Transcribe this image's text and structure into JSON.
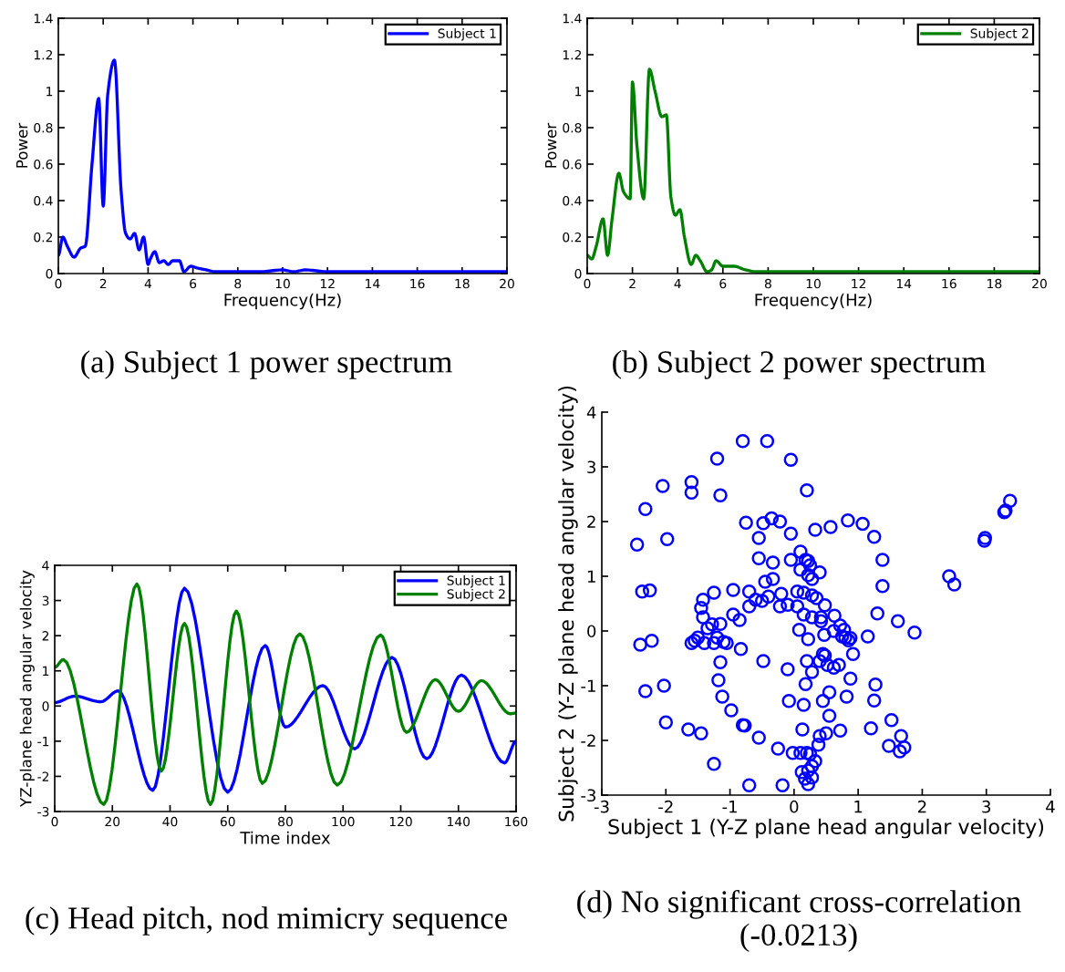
{
  "chart_data": [
    {
      "type": "line",
      "xlabel": "Frequency(Hz)",
      "ylabel": "Power",
      "annotations": [
        "(a) Subject 1 power spectrum"
      ],
      "xlim": [
        0,
        20
      ],
      "ylim": [
        0,
        1.4
      ],
      "xticks": [
        0,
        2,
        4,
        6,
        8,
        10,
        12,
        14,
        16,
        18,
        20
      ],
      "yticks": [
        0,
        0.2,
        0.4,
        0.6,
        0.8,
        1,
        1.2,
        1.4
      ],
      "grid": false,
      "legend": "top right",
      "marker": "none",
      "line_style": "solid",
      "series": [
        {
          "name": "Subject 1",
          "color": "#0000ff",
          "x": [
            0,
            0.2,
            0.4,
            0.7,
            1.0,
            1.2,
            1.5,
            1.8,
            2.0,
            2.2,
            2.5,
            2.8,
            3.0,
            3.2,
            3.4,
            3.6,
            3.8,
            4.0,
            4.1,
            4.3,
            4.5,
            4.7,
            4.9,
            5.1,
            5.4,
            5.6,
            5.9,
            6.2,
            6.6,
            7,
            8,
            9,
            10,
            10.5,
            11,
            12,
            14,
            16,
            18,
            20
          ],
          "values": [
            0.1,
            0.2,
            0.15,
            0.09,
            0.14,
            0.15,
            0.6,
            0.96,
            0.37,
            0.98,
            1.17,
            0.45,
            0.22,
            0.19,
            0.22,
            0.13,
            0.2,
            0.05,
            0.08,
            0.12,
            0.06,
            0.07,
            0.05,
            0.07,
            0.07,
            0.01,
            0.04,
            0.03,
            0.02,
            0.01,
            0.01,
            0.01,
            0.02,
            0.01,
            0.02,
            0.01,
            0.01,
            0.01,
            0.01,
            0.01
          ]
        }
      ]
    },
    {
      "type": "line",
      "xlabel": "Frequency(Hz)",
      "ylabel": "Power",
      "annotations": [
        "(b) Subject 2 power spectrum"
      ],
      "xlim": [
        0,
        20
      ],
      "ylim": [
        0,
        1.4
      ],
      "xticks": [
        0,
        2,
        4,
        6,
        8,
        10,
        12,
        14,
        16,
        18,
        20
      ],
      "yticks": [
        0,
        0.2,
        0.4,
        0.6,
        0.8,
        1,
        1.2,
        1.4
      ],
      "grid": false,
      "legend": "top right",
      "marker": "none",
      "line_style": "solid",
      "series": [
        {
          "name": "Subject 2",
          "color": "#008000",
          "x": [
            0,
            0.2,
            0.4,
            0.7,
            0.9,
            1.1,
            1.4,
            1.6,
            1.9,
            2.0,
            2.2,
            2.5,
            2.75,
            3.0,
            3.3,
            3.5,
            3.7,
            3.9,
            4.1,
            4.3,
            4.6,
            4.8,
            5.0,
            5.3,
            5.5,
            5.7,
            6.0,
            6.5,
            7,
            7.5,
            8,
            9,
            10,
            11,
            12,
            14,
            16,
            18,
            20
          ],
          "values": [
            0.1,
            0.08,
            0.15,
            0.3,
            0.1,
            0.3,
            0.55,
            0.45,
            0.41,
            1.05,
            0.7,
            0.41,
            1.12,
            1.0,
            0.86,
            0.87,
            0.42,
            0.32,
            0.35,
            0.2,
            0.05,
            0.1,
            0.07,
            0.01,
            0.02,
            0.07,
            0.04,
            0.04,
            0.02,
            0.01,
            0.01,
            0.01,
            0.01,
            0.01,
            0.01,
            0.01,
            0.01,
            0.01,
            0.01
          ]
        }
      ]
    },
    {
      "type": "line",
      "xlabel": "Time index",
      "ylabel": "YZ-plane head angular velocity",
      "annotations": [
        "(c) Head pitch, nod mimicry sequence"
      ],
      "xlim": [
        0,
        160
      ],
      "ylim": [
        -3,
        4
      ],
      "xticks": [
        0,
        20,
        40,
        60,
        80,
        100,
        120,
        140,
        160
      ],
      "yticks": [
        -3,
        -2,
        -1,
        0,
        1,
        2,
        3,
        4
      ],
      "grid": false,
      "legend": "top right",
      "marker": "none",
      "line_style": "solid",
      "series": [
        {
          "name": "Subject 1",
          "color": "#0000ff",
          "x": [
            0,
            7,
            16,
            22,
            34,
            45,
            60,
            73,
            80,
            93,
            104,
            117,
            129,
            141,
            156,
            160
          ],
          "values": [
            0.1,
            0.28,
            0.12,
            0.43,
            -2.4,
            3.35,
            -2.45,
            1.72,
            -0.6,
            0.58,
            -1.22,
            1.38,
            -1.5,
            0.88,
            -1.62,
            -1.0
          ]
        },
        {
          "name": "Subject 2",
          "color": "#008000",
          "x": [
            0,
            3,
            17,
            28.5,
            37,
            45,
            54,
            63,
            72,
            85,
            98,
            113,
            122,
            132,
            140,
            148,
            158,
            160
          ],
          "values": [
            1.1,
            1.32,
            -2.8,
            3.47,
            -1.85,
            2.35,
            -2.8,
            2.7,
            -2.2,
            2.05,
            -2.25,
            2.02,
            -0.75,
            0.75,
            -0.15,
            0.72,
            -0.22,
            -0.2
          ]
        }
      ]
    },
    {
      "type": "scatter",
      "xlabel": "Subject 1 (Y-Z plane head angular velocity)",
      "ylabel": "Subject 2 (Y-Z plane head angular velocity)",
      "annotations": [
        "(d) No significant cross-correlation (-0.0213)"
      ],
      "xlim": [
        -3,
        4
      ],
      "ylim": [
        -3,
        4
      ],
      "xticks": [
        -3,
        -2,
        -1,
        0,
        1,
        2,
        3,
        4
      ],
      "yticks": [
        -3,
        -2,
        -1,
        0,
        1,
        2,
        3,
        4
      ],
      "grid": false,
      "legend": false,
      "marker": "circle",
      "series": [
        {
          "color": "#0000ff",
          "x": [
            -0.8,
            -0.42,
            -0.05,
            -1.2,
            -2.05,
            -1.6,
            -1.6,
            -1.15,
            0.2,
            -2.32,
            -2.45,
            -1.98,
            -0.75,
            -0.48,
            -0.35,
            -0.22,
            -0.05,
            0.33,
            0.57,
            0.84,
            1.07,
            1.25,
            1.38,
            1.38,
            1.3,
            1.62,
            1.88,
            1.15,
            0.92,
            0.88,
            0.82,
            0.72,
            1.2,
            1.25,
            1.27,
            1.52,
            1.48,
            1.67,
            1.65,
            1.72,
            2.42,
            2.5,
            2.97,
            2.98,
            3.28,
            3.3,
            3.37,
            -0.55,
            -0.55,
            -0.33,
            -0.45,
            -0.33,
            -0.05,
            0.1,
            0.18,
            0.22,
            0.1,
            0.25,
            0.4,
            0.22,
            0.28,
            -0.6,
            -0.7,
            -0.95,
            -1.25,
            -1.42,
            -1.45,
            -1.42,
            -1.35,
            -1.28,
            -1.15,
            -0.95,
            -0.85,
            -0.7,
            -0.5,
            -0.4,
            -0.2,
            -0.22,
            -0.1,
            0.05,
            0.15,
            0.28,
            0.35,
            0.05,
            0.15,
            0.28,
            0.42,
            0.48,
            0.63,
            0.42,
            0.72,
            0.78,
            0.62,
            0.47,
            0.22,
            0.08,
            0.8,
            0.85,
            0.88,
            0.75,
            -1.5,
            -1.55,
            -1.6,
            -1.4,
            -1.2,
            -1.1,
            -1.05,
            -1.25,
            -0.83,
            -2.4,
            -2.22,
            -2.37,
            -2.25,
            -1.15,
            -0.48,
            -0.1,
            0.2,
            0.28,
            0.45,
            0.48,
            0.4,
            0.52,
            0.62,
            0.7,
            -1.18,
            0.18,
            -1.12,
            -0.98,
            -0.08,
            0.15,
            0.45,
            0.55,
            0.55,
            -2.32,
            -2.03,
            -2.0,
            -1.65,
            -1.45,
            -0.8,
            -0.77,
            -0.55,
            0.13,
            0.4,
            0.5,
            -0.25,
            0.38,
            -0.02,
            0.1,
            0.2,
            0.25,
            0.33,
            0.28,
            0.22,
            0.12,
            0.17,
            0.22,
            0.28,
            -1.25,
            -0.7,
            -0.18
          ],
          "values": [
            3.47,
            3.47,
            3.13,
            3.15,
            2.65,
            2.72,
            2.53,
            2.48,
            2.57,
            2.23,
            1.58,
            1.68,
            1.98,
            1.97,
            2.06,
            2.0,
            1.78,
            1.85,
            1.9,
            2.02,
            1.96,
            1.72,
            1.3,
            0.82,
            0.32,
            0.18,
            -0.03,
            -0.1,
            -0.42,
            -0.87,
            -1.2,
            -1.82,
            -1.78,
            -1.27,
            -0.98,
            -1.63,
            -2.1,
            -1.92,
            -2.2,
            -2.13,
            1.0,
            0.85,
            1.65,
            1.7,
            2.17,
            2.2,
            2.38,
            1.7,
            1.33,
            1.25,
            0.9,
            0.95,
            1.3,
            1.45,
            1.3,
            1.28,
            1.12,
            1.2,
            1.07,
            1.02,
            0.95,
            0.57,
            0.72,
            0.75,
            0.7,
            0.57,
            0.42,
            0.25,
            0.05,
            0.12,
            0.13,
            0.3,
            0.2,
            0.45,
            0.55,
            0.63,
            0.68,
            0.45,
            0.48,
            0.72,
            0.7,
            0.65,
            0.6,
            0.45,
            0.3,
            0.25,
            0.25,
            0.47,
            0.28,
            0.18,
            0.1,
            0.02,
            0.0,
            -0.07,
            -0.15,
            0.02,
            -0.12,
            -0.17,
            -0.13,
            -0.1,
            -0.12,
            -0.18,
            -0.22,
            -0.22,
            -0.12,
            -0.2,
            -0.22,
            -0.22,
            -0.33,
            -0.25,
            -0.18,
            0.72,
            0.74,
            -0.57,
            -0.55,
            -0.7,
            -0.55,
            -0.75,
            -0.42,
            -0.45,
            -0.55,
            -0.62,
            -0.67,
            -0.62,
            -0.9,
            -0.97,
            -1.2,
            -1.45,
            -1.28,
            -1.35,
            -1.28,
            -1.12,
            -1.55,
            -1.1,
            -1.0,
            -1.67,
            -1.8,
            -1.87,
            -1.72,
            -1.73,
            -1.95,
            -1.8,
            -1.92,
            -1.87,
            -2.15,
            -2.08,
            -2.23,
            -2.23,
            -2.23,
            -2.25,
            -2.38,
            -2.47,
            -2.55,
            -2.58,
            -2.7,
            -2.8,
            -2.68,
            -2.43,
            -2.82,
            -2.82
          ]
        }
      ]
    }
  ]
}
